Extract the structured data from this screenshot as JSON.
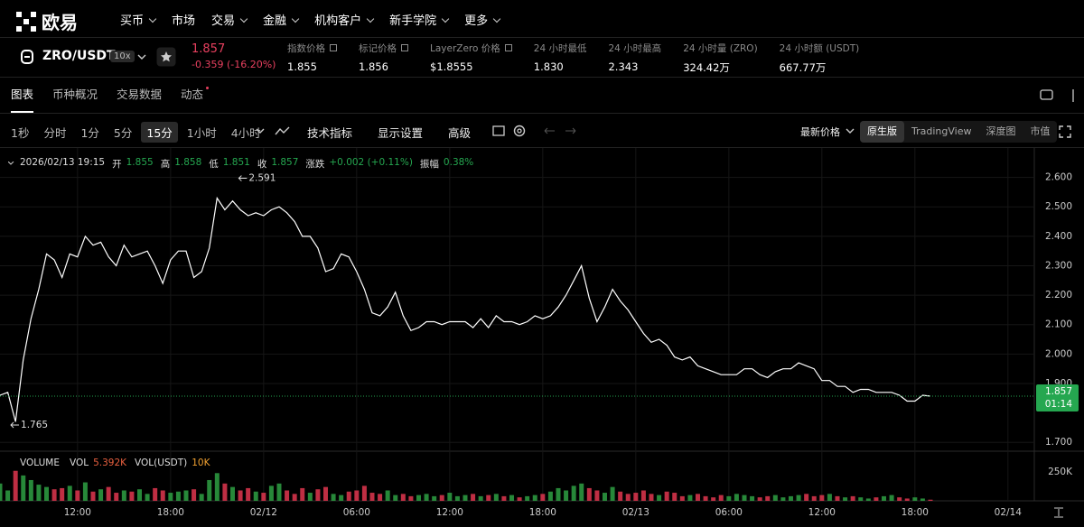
{
  "nav": {
    "logo": "欧易",
    "menu": [
      "买币",
      "市场",
      "交易",
      "金融",
      "机构客户",
      "新手学院",
      "更多"
    ],
    "menu_dropdown": [
      true,
      false,
      true,
      true,
      true,
      true,
      true
    ]
  },
  "ticker": {
    "pair": "ZRO/USDT",
    "leverage": "10x",
    "price": "1.857",
    "change": "-0.359 (-16.20%)",
    "stats": [
      {
        "label": "指数价格",
        "value": "1.855",
        "link": true
      },
      {
        "label": "标记价格",
        "value": "1.856",
        "link": true
      },
      {
        "label": "LayerZero 价格",
        "value": "$1.8555",
        "link": true
      },
      {
        "label": "24 小时最低",
        "value": "1.830",
        "link": false
      },
      {
        "label": "24 小时最高",
        "value": "2.343",
        "link": false
      },
      {
        "label": "24 小时量 (ZRO)",
        "value": "324.42万",
        "link": false
      },
      {
        "label": "24 小时额 (USDT)",
        "value": "667.77万",
        "link": false
      }
    ]
  },
  "tabs": [
    "图表",
    "币种概况",
    "交易数据",
    "动态"
  ],
  "active_tab": 0,
  "toolbar": {
    "intervals": [
      "1秒",
      "分时",
      "1分",
      "5分",
      "15分",
      "1小时",
      "4小时"
    ],
    "active_interval": 4,
    "tools": [
      "技术指标",
      "显示设置",
      "高级"
    ],
    "price_type": "最新价格",
    "views": [
      "原生版",
      "TradingView",
      "深度图",
      "市值"
    ],
    "active_view": 0
  },
  "chart_data": [
    {
      "type": "line",
      "ohlc_time": "2026/02/13 19:15",
      "ohlc": [
        {
          "label": "开",
          "value": "1.855"
        },
        {
          "label": "高",
          "value": "1.858"
        },
        {
          "label": "低",
          "value": "1.851"
        },
        {
          "label": "收",
          "value": "1.857"
        },
        {
          "label": "涨跌",
          "value": "+0.002 (+0.11%)"
        },
        {
          "label": "振幅",
          "value": "0.38%"
        }
      ],
      "color": "#ffffff",
      "grid": true,
      "x": [
        0,
        0.5,
        1,
        1.5,
        2,
        2.5,
        3,
        3.5,
        4,
        4.5,
        5,
        5.5,
        6,
        6.5,
        7,
        7.5,
        8,
        8.5,
        9,
        9.5,
        10,
        10.5,
        11,
        11.5,
        12,
        12.5,
        13,
        13.5,
        14,
        14.5,
        15,
        15.5,
        16,
        16.5,
        17,
        17.5,
        18,
        18.5,
        19,
        19.5,
        20,
        20.5,
        21,
        21.5,
        22,
        22.5,
        23,
        23.5,
        24,
        24.5,
        25,
        25.5,
        26,
        26.5,
        27,
        27.5,
        28,
        28.5,
        29,
        29.5,
        30,
        30.5,
        31,
        31.5,
        32,
        32.5,
        33,
        33.5,
        34,
        34.5,
        35,
        35.5,
        36,
        36.5,
        37,
        37.5,
        38,
        38.5,
        39,
        39.5,
        40,
        40.5,
        41,
        41.5,
        42,
        42.5,
        43,
        43.5,
        44,
        44.5,
        45,
        45.5,
        46,
        46.5,
        47,
        47.5,
        48,
        48.5,
        49,
        49.5,
        50,
        50.5,
        51,
        51.5,
        52,
        52.5,
        53,
        53.5,
        54,
        54.5,
        55,
        55.5,
        56,
        56.5,
        57,
        57.5,
        58,
        58.5,
        59,
        59.5,
        60
      ],
      "values": [
        1.86,
        1.87,
        1.77,
        1.98,
        2.12,
        2.22,
        2.34,
        2.32,
        2.26,
        2.34,
        2.33,
        2.4,
        2.37,
        2.38,
        2.33,
        2.3,
        2.37,
        2.33,
        2.34,
        2.35,
        2.3,
        2.24,
        2.32,
        2.35,
        2.35,
        2.26,
        2.28,
        2.36,
        2.53,
        2.49,
        2.52,
        2.49,
        2.47,
        2.48,
        2.47,
        2.49,
        2.5,
        2.48,
        2.45,
        2.4,
        2.4,
        2.36,
        2.28,
        2.29,
        2.34,
        2.33,
        2.28,
        2.22,
        2.14,
        2.13,
        2.16,
        2.21,
        2.13,
        2.08,
        2.09,
        2.11,
        2.11,
        2.1,
        2.11,
        2.11,
        2.11,
        2.09,
        2.12,
        2.09,
        2.13,
        2.11,
        2.11,
        2.1,
        2.11,
        2.13,
        2.12,
        2.13,
        2.16,
        2.2,
        2.25,
        2.3,
        2.19,
        2.11,
        2.16,
        2.22,
        2.18,
        2.15,
        2.11,
        2.07,
        2.04,
        2.05,
        2.03,
        1.99,
        1.98,
        1.99,
        1.96,
        1.95,
        1.94,
        1.93,
        1.93,
        1.93,
        1.95,
        1.95,
        1.93,
        1.92,
        1.94,
        1.95,
        1.95,
        1.97,
        1.96,
        1.95,
        1.91,
        1.91,
        1.89,
        1.89,
        1.87,
        1.88,
        1.88,
        1.87,
        1.87,
        1.87,
        1.86,
        1.84,
        1.84,
        1.86,
        1.857
      ],
      "xlim": [
        0,
        66.7
      ],
      "xticks": [
        {
          "value": 5,
          "label": "12:00"
        },
        {
          "value": 11,
          "label": "18:00"
        },
        {
          "value": 17,
          "label": "02/12"
        },
        {
          "value": 23,
          "label": "06:00"
        },
        {
          "value": 29,
          "label": "12:00"
        },
        {
          "value": 35,
          "label": "18:00"
        },
        {
          "value": 41,
          "label": "02/13"
        },
        {
          "value": 47,
          "label": "06:00"
        },
        {
          "value": 53,
          "label": "12:00"
        },
        {
          "value": 59,
          "label": "18:00"
        },
        {
          "value": 65,
          "label": "02/14"
        }
      ],
      "ylim": [
        1.67,
        2.7
      ],
      "yticks": [
        {
          "value": 1.7,
          "label": "1.700"
        },
        {
          "value": 1.9,
          "label": "1.900"
        },
        {
          "value": 2,
          "label": "2.000"
        },
        {
          "value": 2.1,
          "label": "2.100"
        },
        {
          "value": 2.2,
          "label": "2.200"
        },
        {
          "value": 2.3,
          "label": "2.300"
        },
        {
          "value": 2.4,
          "label": "2.400"
        },
        {
          "value": 2.5,
          "label": "2.500"
        },
        {
          "value": 2.6,
          "label": "2.600"
        }
      ],
      "high": {
        "value": 2.591,
        "x": 15.4
      },
      "low": {
        "value": 1.765,
        "x": 0.7
      },
      "last_price": {
        "value": 1.857,
        "countdown": "01:14",
        "color": "#25a750"
      }
    },
    {
      "type": "bar",
      "title": "VOLUME",
      "legend": [
        {
          "label": "VOL",
          "value": "5.392K"
        },
        {
          "label": "VOL(USDT)",
          "value": "10K"
        }
      ],
      "values": [
        150000,
        90000,
        260000,
        220000,
        180000,
        140000,
        120000,
        100000,
        110000,
        130000,
        90000,
        160000,
        80000,
        100000,
        120000,
        70000,
        90000,
        80000,
        100000,
        60000,
        110000,
        90000,
        70000,
        80000,
        90000,
        100000,
        60000,
        180000,
        240000,
        150000,
        120000,
        90000,
        110000,
        80000,
        70000,
        130000,
        150000,
        90000,
        60000,
        110000,
        70000,
        100000,
        120000,
        60000,
        50000,
        80000,
        90000,
        130000,
        70000,
        60000,
        90000,
        50000,
        60000,
        40000,
        50000,
        60000,
        40000,
        50000,
        70000,
        40000,
        50000,
        60000,
        40000,
        50000,
        60000,
        40000,
        50000,
        30000,
        40000,
        50000,
        60000,
        80000,
        110000,
        90000,
        130000,
        150000,
        110000,
        90000,
        70000,
        120000,
        80000,
        60000,
        70000,
        90000,
        60000,
        50000,
        80000,
        70000,
        40000,
        50000,
        60000,
        40000,
        30000,
        50000,
        40000,
        60000,
        50000,
        40000,
        30000,
        40000,
        50000,
        30000,
        40000,
        50000,
        60000,
        40000,
        50000,
        60000,
        40000,
        30000,
        40000,
        30000,
        20000,
        30000,
        40000,
        50000,
        30000,
        20000,
        30000,
        20000,
        10000
      ],
      "ylim": [
        0,
        430000
      ],
      "yticks": [
        {
          "value": 250000,
          "label": "250K"
        }
      ],
      "up_color": "#2ea043",
      "down_color": "#e0364f"
    }
  ]
}
